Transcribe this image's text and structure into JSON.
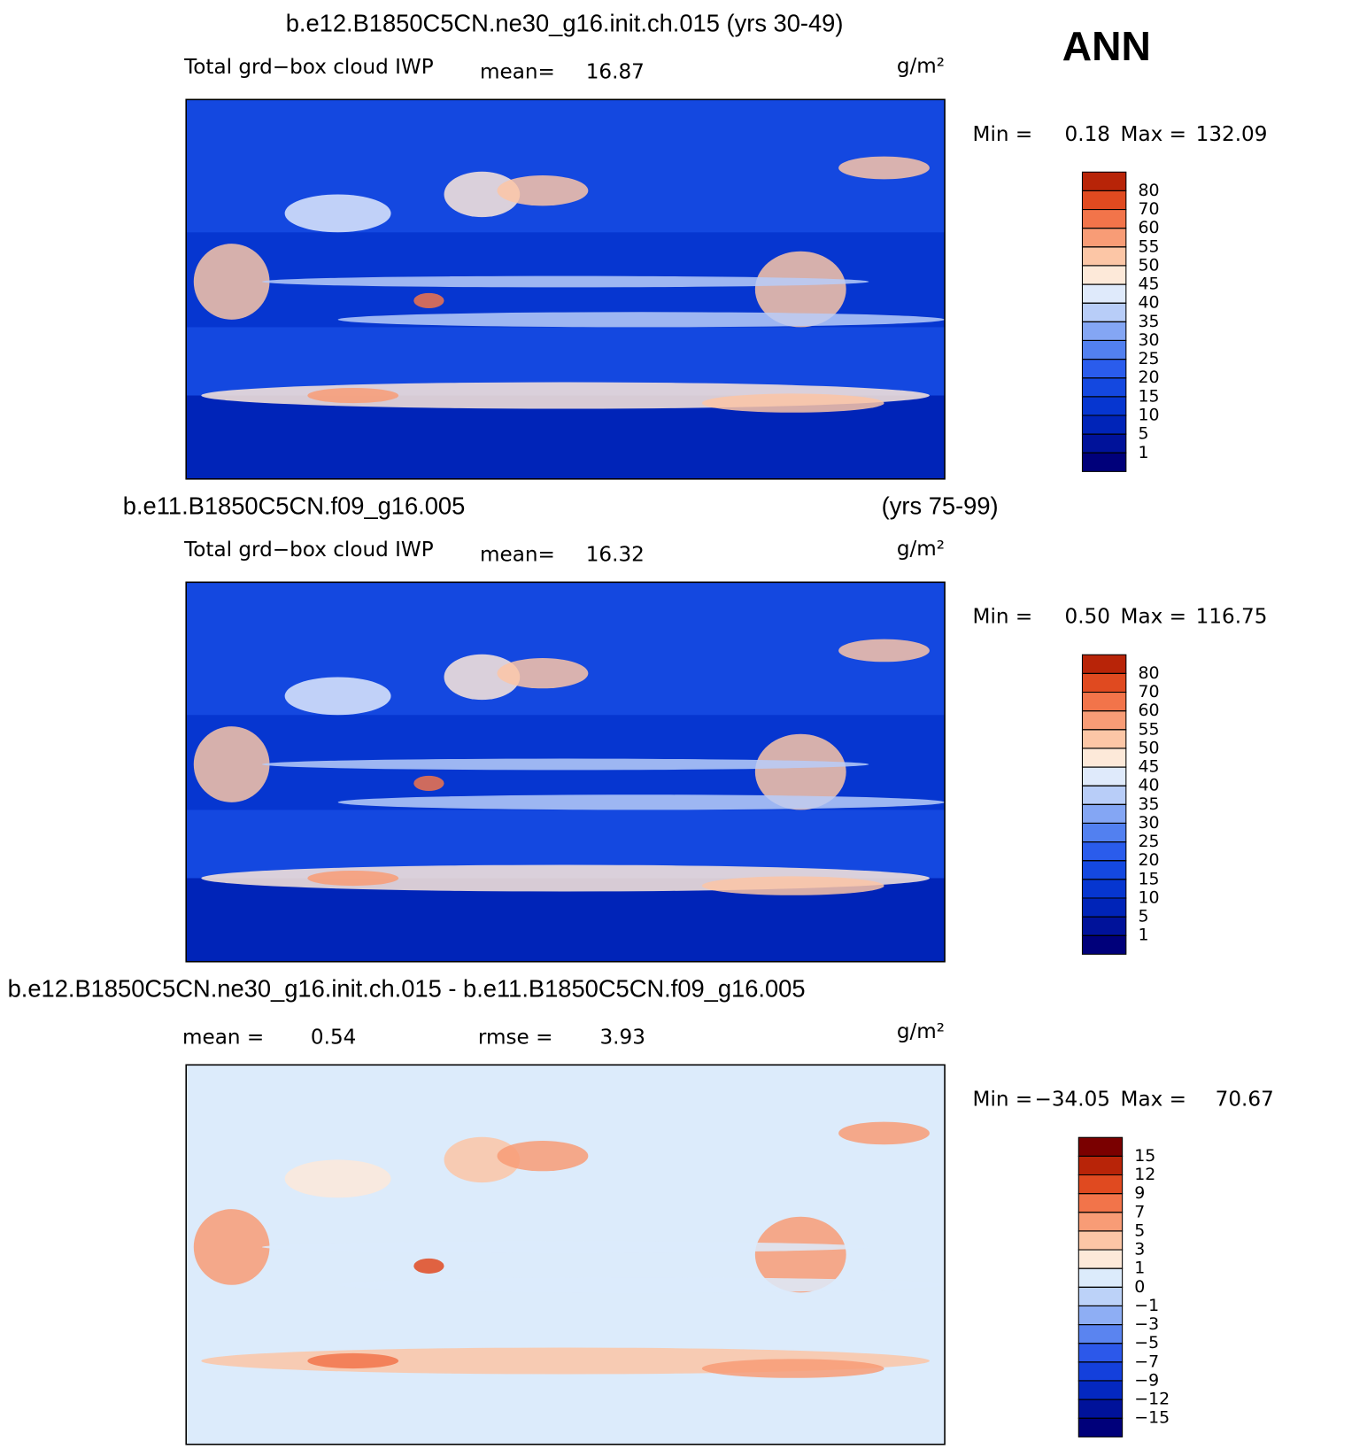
{
  "panel_label": "ANN",
  "chart_data": [
    {
      "type": "contour-map",
      "title": "b.e12.B1850C5CN.ne30_g16.init.ch.015 (yrs 30-49)",
      "variable": "Total grd−box cloud IWP",
      "mean_label": "mean=",
      "mean": 16.87,
      "units": "g/m²",
      "min_label": "Min =",
      "min": 0.18,
      "max_label": "Max =",
      "max": 132.09,
      "levels": [
        1,
        5,
        10,
        15,
        20,
        25,
        30,
        35,
        40,
        45,
        50,
        55,
        60,
        70,
        80
      ],
      "colors": [
        "#00007a",
        "#00129a",
        "#0024b8",
        "#0636d0",
        "#1448e0",
        "#2a5cec",
        "#5280f0",
        "#84a6f4",
        "#b8cdf8",
        "#dfeafb",
        "#fde9d9",
        "#fcc6a6",
        "#f89c76",
        "#f2744a",
        "#e04a20",
        "#b82408"
      ]
    },
    {
      "type": "contour-map",
      "title": "b.e11.B1850C5CN.f09_g16.005",
      "title_right": "(yrs 75-99)",
      "variable": "Total grd−box cloud IWP",
      "mean_label": "mean=",
      "mean": 16.32,
      "units": "g/m²",
      "min_label": "Min =",
      "min": "0.50",
      "max_label": "Max =",
      "max": 116.75,
      "levels": [
        1,
        5,
        10,
        15,
        20,
        25,
        30,
        35,
        40,
        45,
        50,
        55,
        60,
        70,
        80
      ],
      "colors": [
        "#00007a",
        "#00129a",
        "#0024b8",
        "#0636d0",
        "#1448e0",
        "#2a5cec",
        "#5280f0",
        "#84a6f4",
        "#b8cdf8",
        "#dfeafb",
        "#fde9d9",
        "#fcc6a6",
        "#f89c76",
        "#f2744a",
        "#e04a20",
        "#b82408"
      ]
    },
    {
      "type": "contour-map",
      "title": "b.e12.B1850C5CN.ne30_g16.init.ch.015 - b.e11.B1850C5CN.f09_g16.005",
      "mean_label": "mean =",
      "mean": 0.54,
      "rmse_label": "rmse =",
      "rmse": 3.93,
      "units": "g/m²",
      "min_label": "Min =",
      "min": "−34.05",
      "max_label": "Max =",
      "max": 70.67,
      "levels": [
        {
          "value": -15,
          "label": "−15"
        },
        {
          "value": -12,
          "label": "−12"
        },
        {
          "value": -9,
          "label": "−9"
        },
        {
          "value": -7,
          "label": "−7"
        },
        {
          "value": -5,
          "label": "−5"
        },
        {
          "value": -3,
          "label": "−3"
        },
        {
          "value": -1,
          "label": "−1"
        },
        0,
        1,
        3,
        5,
        7,
        9,
        12,
        15
      ],
      "colors": [
        "#00007a",
        "#00129a",
        "#0428c0",
        "#1440dc",
        "#2c58ea",
        "#5a84f0",
        "#8eaef4",
        "#bcd2f8",
        "#dcebfb",
        "#fde9d9",
        "#fcc6a6",
        "#f89c76",
        "#f2744a",
        "#e04a20",
        "#b82408",
        "#7a0000"
      ]
    }
  ]
}
